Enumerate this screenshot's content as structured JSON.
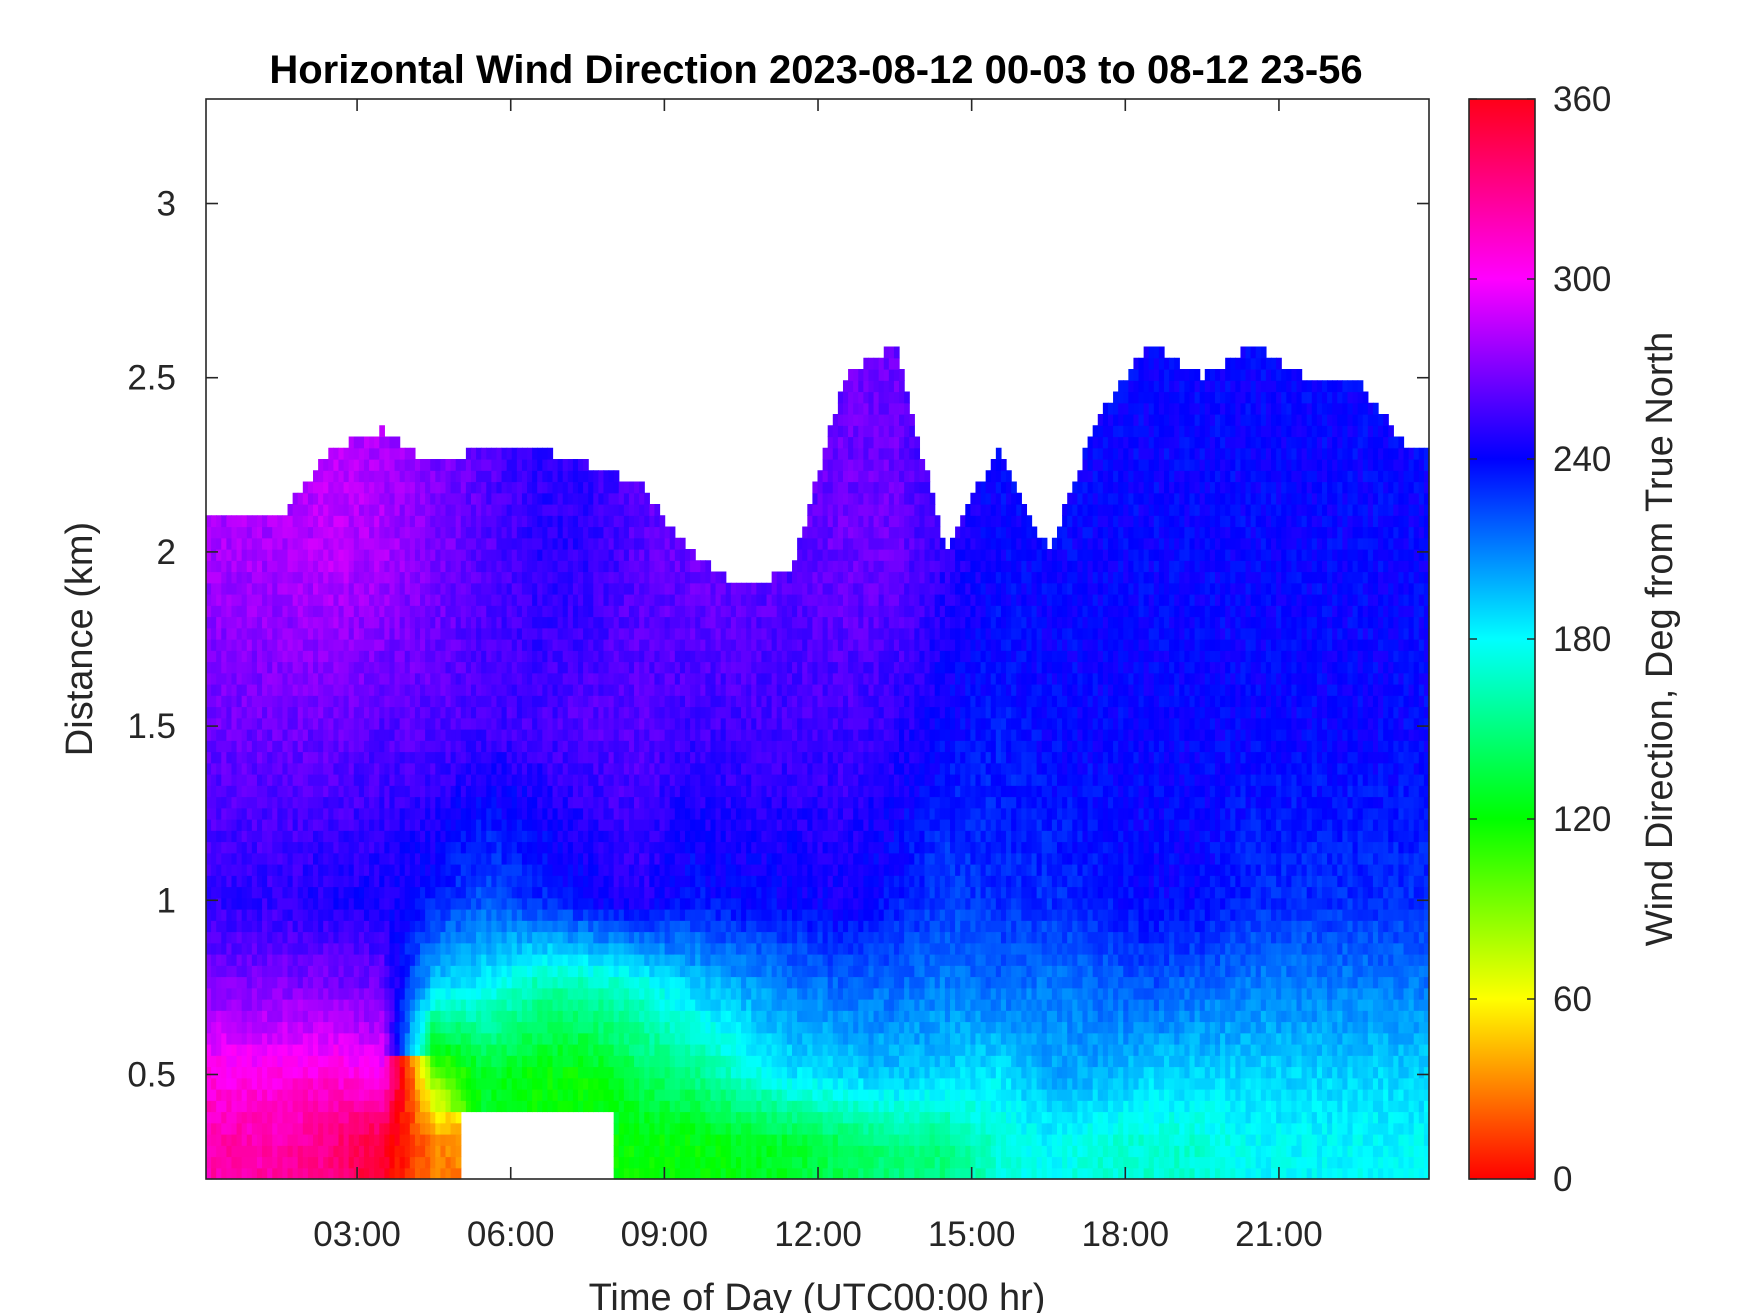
{
  "chart_data": {
    "type": "heatmap",
    "title": "Horizontal Wind Direction 2023-08-12 00-03 to 08-12 23-56",
    "xlabel": "Time of Day (UTC00:00 hr)",
    "ylabel": "Distance (km)",
    "colorbar_label": "Wind Direction, Deg from True North",
    "xlim": [
      0.05,
      23.93
    ],
    "ylim": [
      0.2,
      3.3
    ],
    "x_ticks": [
      3,
      6,
      9,
      12,
      15,
      18,
      21
    ],
    "x_tick_labels": [
      "03:00",
      "06:00",
      "09:00",
      "12:00",
      "15:00",
      "18:00",
      "21:00"
    ],
    "y_ticks": [
      0.5,
      1,
      1.5,
      2,
      2.5,
      3
    ],
    "y_tick_labels": [
      "0.5",
      "1",
      "1.5",
      "2",
      "2.5",
      "3"
    ],
    "colorbar_ticks": [
      0,
      60,
      120,
      180,
      240,
      300,
      360
    ],
    "colorbar_tick_labels": [
      "0",
      "60",
      "120",
      "180",
      "240",
      "300",
      "360"
    ],
    "colorbar_range": [
      0,
      360
    ],
    "colormap": "hsv",
    "grid": false,
    "time_hours": [
      0.5,
      1.5,
      2.5,
      3.5,
      4.5,
      5.5,
      6.5,
      7.5,
      8.5,
      9.5,
      10.5,
      11.5,
      12.5,
      13.5,
      14.5,
      15.5,
      16.5,
      17.5,
      18.5,
      19.5,
      20.5,
      21.5,
      22.5,
      23.5
    ],
    "data_top_km": [
      2.1,
      2.1,
      2.3,
      2.35,
      2.25,
      2.3,
      2.3,
      2.25,
      2.2,
      2.0,
      1.9,
      1.95,
      2.5,
      2.6,
      2.0,
      2.3,
      2.0,
      2.4,
      2.6,
      2.5,
      2.6,
      2.5,
      2.5,
      2.3
    ],
    "profile_heights_km": [
      0.3,
      0.5,
      0.75,
      1.0,
      1.5,
      2.0
    ],
    "wind_direction_deg": [
      [
        320,
        305,
        270,
        250,
        265,
        280
      ],
      [
        320,
        305,
        270,
        250,
        265,
        280
      ],
      [
        330,
        310,
        270,
        245,
        265,
        285
      ],
      [
        350,
        300,
        265,
        245,
        260,
        280
      ],
      [
        30,
        90,
        190,
        235,
        260,
        270
      ],
      [
        null,
        130,
        180,
        220,
        255,
        260
      ],
      [
        null,
        120,
        160,
        230,
        255,
        250
      ],
      [
        null,
        120,
        160,
        240,
        260,
        250
      ],
      [
        120,
        140,
        170,
        250,
        260,
        260
      ],
      [
        120,
        150,
        190,
        235,
        255,
        265
      ],
      [
        125,
        170,
        200,
        240,
        255,
        265
      ],
      [
        130,
        185,
        210,
        240,
        255,
        260
      ],
      [
        140,
        190,
        215,
        245,
        255,
        265
      ],
      [
        150,
        195,
        215,
        235,
        250,
        265
      ],
      [
        150,
        190,
        210,
        225,
        240,
        250
      ],
      [
        170,
        185,
        215,
        230,
        235,
        240
      ],
      [
        180,
        200,
        210,
        230,
        240,
        240
      ],
      [
        170,
        200,
        215,
        235,
        240,
        240
      ],
      [
        170,
        190,
        220,
        240,
        240,
        240
      ],
      [
        170,
        190,
        215,
        240,
        240,
        240
      ],
      [
        180,
        190,
        210,
        230,
        240,
        240
      ],
      [
        180,
        190,
        210,
        230,
        240,
        240
      ],
      [
        180,
        190,
        210,
        230,
        240,
        240
      ],
      [
        180,
        190,
        210,
        230,
        240,
        240
      ]
    ]
  }
}
